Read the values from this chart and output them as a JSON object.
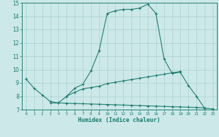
{
  "xlabel": "Humidex (Indice chaleur)",
  "x_values": [
    0,
    1,
    2,
    3,
    4,
    5,
    6,
    7,
    8,
    9,
    10,
    11,
    12,
    13,
    14,
    15,
    16,
    17,
    18,
    19,
    20,
    21,
    22,
    23
  ],
  "line1_y": [
    9.3,
    8.6,
    8.1,
    7.6,
    7.5,
    8.0,
    8.6,
    8.9,
    9.9,
    11.4,
    14.2,
    14.4,
    14.5,
    14.5,
    14.6,
    14.9,
    14.2,
    10.8,
    9.7,
    9.8,
    8.8,
    8.0,
    7.1,
    null
  ],
  "line2_y": [
    null,
    null,
    null,
    7.5,
    7.5,
    7.48,
    7.46,
    7.44,
    7.42,
    7.4,
    7.38,
    7.36,
    7.34,
    7.32,
    7.3,
    7.28,
    7.26,
    7.24,
    7.22,
    7.2,
    7.18,
    7.16,
    7.12,
    7.05
  ],
  "line3_y": [
    null,
    null,
    null,
    null,
    null,
    8.0,
    8.3,
    8.55,
    8.65,
    8.75,
    8.95,
    9.05,
    9.15,
    9.25,
    9.35,
    9.45,
    9.55,
    9.65,
    9.75,
    9.85,
    null,
    null,
    null,
    null
  ],
  "line_color": "#1a7a6e",
  "bg_color": "#cce8e8",
  "grid_color": "#aad0d0",
  "ylim": [
    7,
    15
  ],
  "xlim": [
    -0.5,
    23.5
  ],
  "yticks": [
    7,
    8,
    9,
    10,
    11,
    12,
    13,
    14,
    15
  ],
  "xticks": [
    0,
    1,
    2,
    3,
    4,
    5,
    6,
    7,
    8,
    9,
    10,
    11,
    12,
    13,
    14,
    15,
    16,
    17,
    18,
    19,
    20,
    21,
    22,
    23
  ]
}
